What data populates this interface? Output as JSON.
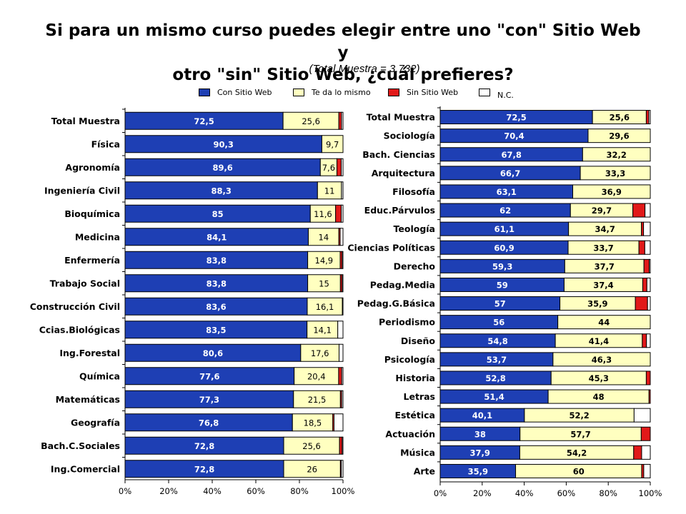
{
  "header": {
    "title_line1": "Si para un mismo curso puedes elegir entre uno \"con\" Sitio Web y",
    "title_line2": "otro \"sin\" Sitio Web, ¿cuál prefieres?",
    "subtitle": "(Total Muestra = 3.732)"
  },
  "legend": {
    "placement": "top-center",
    "items": [
      {
        "label": "Con Sitio Web",
        "color": "#1e3fb4"
      },
      {
        "label": "Te da lo mismo",
        "color": "#ffffc0"
      },
      {
        "label": "Sin Sitio Web",
        "color": "#e11919"
      },
      {
        "label": "N.C.",
        "color": "#ffffff"
      }
    ]
  },
  "chart_data": [
    {
      "type": "bar",
      "orientation": "horizontal",
      "stacked": true,
      "percent_axis": true,
      "xlim": [
        0,
        100
      ],
      "xticks": [
        "0%",
        "20%",
        "40%",
        "60%",
        "80%",
        "100%"
      ],
      "grid": false,
      "series_names": [
        "Con Sitio Web",
        "Te da lo mismo",
        "Sin Sitio Web",
        "N.C."
      ],
      "label_style": {
        "con": "bold",
        "te": "normal"
      },
      "rows": [
        {
          "category": "Total Muestra",
          "values": [
            72.5,
            25.6,
            1.2,
            0.7
          ],
          "labels": [
            "72,5",
            "25,6"
          ]
        },
        {
          "category": "Física",
          "values": [
            90.3,
            9.7,
            0,
            0
          ],
          "labels": [
            "90,3",
            "9,7"
          ]
        },
        {
          "category": "Agronomía",
          "values": [
            89.6,
            7.6,
            2.0,
            0.8
          ],
          "labels": [
            "89,6",
            "7,6"
          ]
        },
        {
          "category": "Ingeniería Civil",
          "values": [
            88.3,
            11,
            0,
            0.7
          ],
          "labels": [
            "88,3",
            "11"
          ]
        },
        {
          "category": "Bioquímica",
          "values": [
            85,
            11.6,
            2.6,
            0.8
          ],
          "labels": [
            "85",
            "11,6"
          ]
        },
        {
          "category": "Medicina",
          "values": [
            84.1,
            14,
            0.6,
            1.3
          ],
          "labels": [
            "84,1",
            "14"
          ]
        },
        {
          "category": "Enfermería",
          "values": [
            83.8,
            14.9,
            0.9,
            0.4
          ],
          "labels": [
            "83,8",
            "14,9"
          ]
        },
        {
          "category": "Trabajo Social",
          "values": [
            83.8,
            15,
            0.8,
            0.4
          ],
          "labels": [
            "83,8",
            "15"
          ]
        },
        {
          "category": "Construcción Civil",
          "values": [
            83.6,
            16.1,
            0,
            0.3
          ],
          "labels": [
            "83,6",
            "16,1"
          ]
        },
        {
          "category": "Ccias.Biológicas",
          "values": [
            83.5,
            14.1,
            0,
            2.4
          ],
          "labels": [
            "83,5",
            "14,1"
          ]
        },
        {
          "category": "Ing.Forestal",
          "values": [
            80.6,
            17.6,
            0,
            1.8
          ],
          "labels": [
            "80,6",
            "17,6"
          ]
        },
        {
          "category": "Química",
          "values": [
            77.6,
            20.4,
            1.4,
            0.6
          ],
          "labels": [
            "77,6",
            "20,4"
          ]
        },
        {
          "category": "Matemáticas",
          "values": [
            77.3,
            21.5,
            0.6,
            0.6
          ],
          "labels": [
            "77,3",
            "21,5"
          ]
        },
        {
          "category": "Geografía",
          "values": [
            76.8,
            18.5,
            0.6,
            4.1
          ],
          "labels": [
            "76,8",
            "18,5"
          ]
        },
        {
          "category": "Bach.C.Sociales",
          "values": [
            72.8,
            25.6,
            1.2,
            0.4
          ],
          "labels": [
            "72,8",
            "25,6"
          ]
        },
        {
          "category": "Ing.Comercial",
          "values": [
            72.8,
            26,
            0.4,
            0.8
          ],
          "labels": [
            "72,8",
            "26"
          ]
        }
      ]
    },
    {
      "type": "bar",
      "orientation": "horizontal",
      "stacked": true,
      "percent_axis": true,
      "xlim": [
        0,
        100
      ],
      "xticks": [
        "0%",
        "20%",
        "40%",
        "60%",
        "80%",
        "100%"
      ],
      "grid": false,
      "series_names": [
        "Con Sitio Web",
        "Te da lo mismo",
        "Sin Sitio Web",
        "N.C."
      ],
      "label_style": {
        "con": "bold",
        "te": "bold"
      },
      "rows": [
        {
          "category": "Total Muestra",
          "values": [
            72.5,
            25.6,
            1.2,
            0.7
          ],
          "labels": [
            "72,5",
            "25,6"
          ]
        },
        {
          "category": "Sociología",
          "values": [
            70.4,
            29.6,
            0,
            0
          ],
          "labels": [
            "70,4",
            "29,6"
          ]
        },
        {
          "category": "Bach. Ciencias",
          "values": [
            67.8,
            32.2,
            0,
            0
          ],
          "labels": [
            "67,8",
            "32,2"
          ]
        },
        {
          "category": "Arquitectura",
          "values": [
            66.7,
            33.3,
            0,
            0
          ],
          "labels": [
            "66,7",
            "33,3"
          ]
        },
        {
          "category": "Filosofía",
          "values": [
            63.1,
            36.9,
            0,
            0
          ],
          "labels": [
            "63,1",
            "36,9"
          ]
        },
        {
          "category": "Educ.Párvulos",
          "values": [
            62,
            29.7,
            5.8,
            2.5
          ],
          "labels": [
            "62",
            "29,7"
          ]
        },
        {
          "category": "Teología",
          "values": [
            61.1,
            34.7,
            1.0,
            3.2
          ],
          "labels": [
            "61,1",
            "34,7"
          ]
        },
        {
          "category": "Ciencias Políticas",
          "values": [
            60.9,
            33.7,
            2.8,
            2.6
          ],
          "labels": [
            "60,9",
            "33,7"
          ]
        },
        {
          "category": "Derecho",
          "values": [
            59.3,
            37.7,
            2.5,
            0.5
          ],
          "labels": [
            "59,3",
            "37,7"
          ]
        },
        {
          "category": "Pedag.Media",
          "values": [
            59,
            37.4,
            2.0,
            1.6
          ],
          "labels": [
            "59",
            "37,4"
          ]
        },
        {
          "category": "Pedag.G.Básica",
          "values": [
            57,
            35.9,
            5.8,
            1.3
          ],
          "labels": [
            "57",
            "35,9"
          ]
        },
        {
          "category": "Periodismo",
          "values": [
            56,
            44,
            0,
            0
          ],
          "labels": [
            "56",
            "44"
          ]
        },
        {
          "category": "Diseño",
          "values": [
            54.8,
            41.4,
            2.0,
            1.8
          ],
          "labels": [
            "54,8",
            "41,4"
          ]
        },
        {
          "category": "Psicología",
          "values": [
            53.7,
            46.3,
            0,
            0
          ],
          "labels": [
            "53,7",
            "46,3"
          ]
        },
        {
          "category": "Historia",
          "values": [
            52.8,
            45.3,
            1.9,
            0
          ],
          "labels": [
            "52,8",
            "45,3"
          ]
        },
        {
          "category": "Letras",
          "values": [
            51.4,
            48,
            0.6,
            0
          ],
          "labels": [
            "51,4",
            "48"
          ]
        },
        {
          "category": "Estética",
          "values": [
            40.1,
            52.2,
            0,
            7.7
          ],
          "labels": [
            "40,1",
            "52,2"
          ]
        },
        {
          "category": "Actuación",
          "values": [
            38,
            57.7,
            4.3,
            0
          ],
          "labels": [
            "38",
            "57,7"
          ]
        },
        {
          "category": "Música",
          "values": [
            37.9,
            54.2,
            3.8,
            4.1
          ],
          "labels": [
            "37,9",
            "54,2"
          ]
        },
        {
          "category": "Arte",
          "values": [
            35.9,
            60,
            1.0,
            3.1
          ],
          "labels": [
            "35,9",
            "60"
          ]
        }
      ]
    }
  ]
}
